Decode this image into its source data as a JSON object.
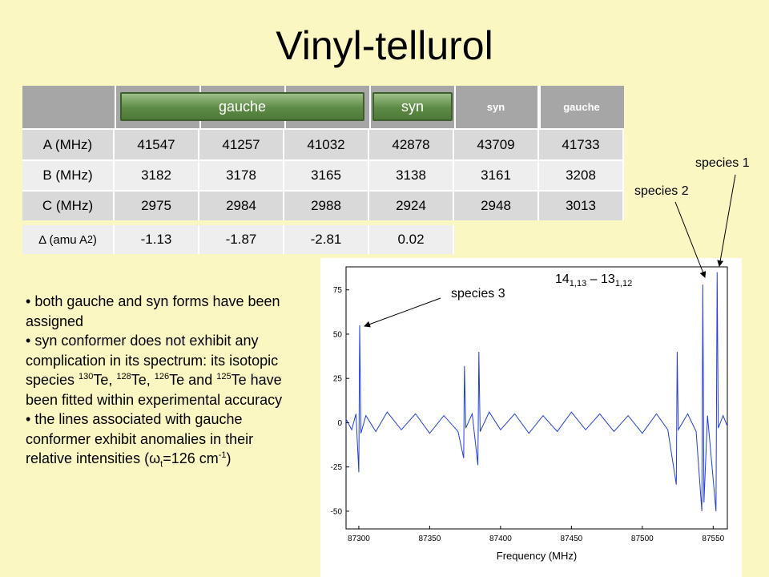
{
  "title": "Vinyl-tellurol",
  "table": {
    "header_buttons": [
      "gauche",
      "syn"
    ],
    "header": [
      "syn",
      "gauche"
    ],
    "rows": [
      {
        "label": "A (MHz)",
        "values": [
          "41547",
          "41257",
          "41032",
          "42878",
          "43709",
          "41733"
        ]
      },
      {
        "label": "B (MHz)",
        "values": [
          "3182",
          "3178",
          "3165",
          "3138",
          "3161",
          "3208"
        ]
      },
      {
        "label": "C (MHz)",
        "values": [
          "2975",
          "2984",
          "2988",
          "2924",
          "2948",
          "3013"
        ]
      }
    ],
    "delta": {
      "label": [
        {
          "text": "Δ (amu A"
        },
        {
          "text": "2",
          "style": "sup"
        },
        {
          "text": ")"
        }
      ],
      "values": [
        "-1.13",
        "-1.87",
        "-2.81",
        "0.02"
      ]
    }
  },
  "bullets": [
    [
      {
        "text": "both gauche and syn forms have been assigned"
      }
    ],
    [
      {
        "text": "syn conformer does not exhibit any complication in its spectrum: its isotopic species "
      },
      {
        "text": "130",
        "style": "sup"
      },
      {
        "text": "Te, "
      },
      {
        "text": "128",
        "style": "sup"
      },
      {
        "text": "Te, "
      },
      {
        "text": "126",
        "style": "sup"
      },
      {
        "text": "Te and "
      },
      {
        "text": "125",
        "style": "sup"
      },
      {
        "text": "Te have been fitted within experimental accuracy"
      }
    ],
    [
      {
        "text": "the lines associated with gauche conformer exhibit anomalies in their  relative intensities (ω"
      },
      {
        "text": "t",
        "style": "sub"
      },
      {
        "text": "=126 cm"
      },
      {
        "text": "-1",
        "style": "sup"
      },
      {
        "text": ")"
      }
    ]
  ],
  "annotations": {
    "species_1": "species 1",
    "species_2": "species 2",
    "species_3": "species 3",
    "transition": [
      {
        "text": "14"
      },
      {
        "text": "1,13",
        "style": "sub"
      },
      {
        "text": " – 13"
      },
      {
        "text": "1,12",
        "style": "sub"
      }
    ]
  },
  "chart_data": {
    "type": "line",
    "x_label": "Frequency (MHz)",
    "x": [
      87291,
      87295,
      87298,
      87300,
      87300.6,
      87301.5,
      87305,
      87312,
      87320,
      87330,
      87340,
      87350,
      87360,
      87370,
      87374,
      87374.5,
      87375.5,
      87380,
      87384,
      87384.7,
      87385.6,
      87392,
      87400,
      87410,
      87420,
      87430,
      87440,
      87450,
      87460,
      87470,
      87480,
      87490,
      87500,
      87510,
      87518,
      87524,
      87524.6,
      87525.4,
      87532,
      87538,
      87542,
      87542.7,
      87543.5,
      87546,
      87552,
      87552.8,
      87553.6,
      87557,
      87560
    ],
    "series": [
      {
        "color": "#1f3fd8",
        "values": [
          2,
          -4,
          5,
          -28,
          55,
          -6,
          4,
          -5,
          6,
          -4,
          5,
          -6,
          4,
          -5,
          -20,
          32,
          -3,
          5,
          -24,
          40,
          -5,
          6,
          -4,
          5,
          -6,
          4,
          -5,
          6,
          -4,
          5,
          -5,
          4,
          -6,
          5,
          -4,
          -35,
          40,
          -4,
          5,
          -5,
          -50,
          78,
          -45,
          4,
          -50,
          85,
          -3,
          4,
          -2
        ]
      }
    ],
    "xlim": [
      87291,
      87560
    ],
    "xticks": [
      87300,
      87350,
      87400,
      87450,
      87500,
      87550
    ],
    "ylim": [
      -60,
      88
    ],
    "yticks": [
      -50,
      -25,
      0,
      25,
      50,
      75
    ]
  }
}
